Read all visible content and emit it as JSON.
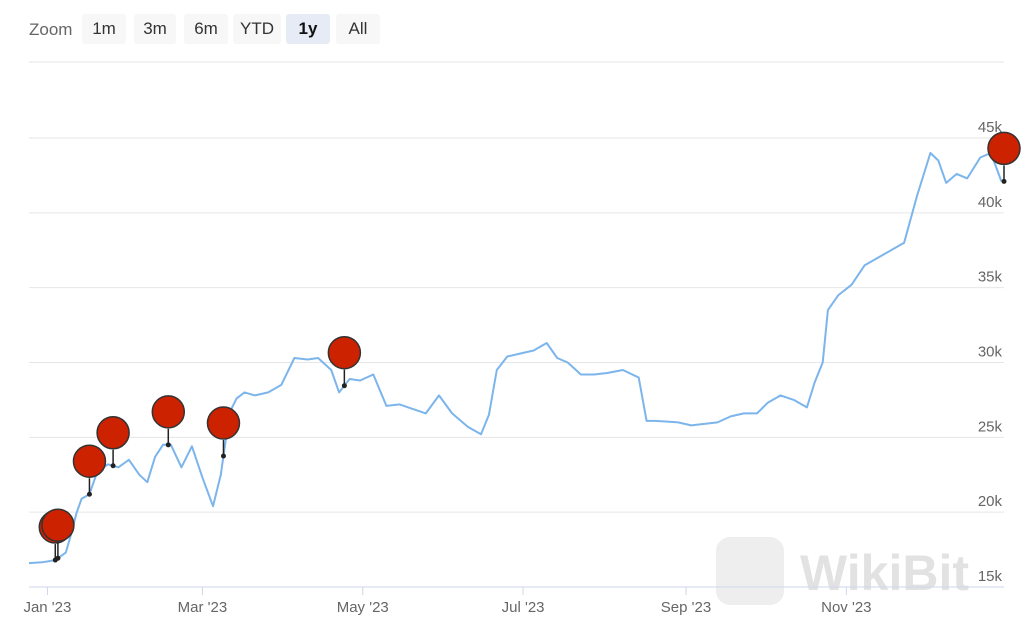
{
  "zoom": {
    "label": "Zoom",
    "buttons": [
      {
        "label": "1m",
        "active": false
      },
      {
        "label": "3m",
        "active": false
      },
      {
        "label": "6m",
        "active": false
      },
      {
        "label": "YTD",
        "active": false
      },
      {
        "label": "1y",
        "active": true
      },
      {
        "label": "All",
        "active": false
      }
    ]
  },
  "watermark": "WikiBit",
  "chart_data": {
    "type": "line",
    "title": "",
    "xlabel": "",
    "ylabel": "",
    "x_tick_labels": [
      "Jan '23",
      "Mar '23",
      "May '23",
      "Jul '23",
      "Sep '23",
      "Nov '23"
    ],
    "y_tick_labels": [
      "15k",
      "20k",
      "25k",
      "30k",
      "35k",
      "40k",
      "45k"
    ],
    "ylim": [
      15000,
      45000
    ],
    "grid": "horizontal",
    "line_color": "#7cb5ec",
    "marker_color": "#cc2200",
    "series": [
      {
        "x": [
          "2022-12-25",
          "2022-12-30",
          "2023-01-04",
          "2023-01-08",
          "2023-01-10",
          "2023-01-12",
          "2023-01-14",
          "2023-01-17",
          "2023-01-20",
          "2023-01-24",
          "2023-01-28",
          "2023-02-01",
          "2023-02-05",
          "2023-02-08",
          "2023-02-11",
          "2023-02-14",
          "2023-02-17",
          "2023-02-21",
          "2023-02-25",
          "2023-03-01",
          "2023-03-05",
          "2023-03-08",
          "2023-03-10",
          "2023-03-12",
          "2023-03-14",
          "2023-03-17",
          "2023-03-21",
          "2023-03-26",
          "2023-03-31",
          "2023-04-05",
          "2023-04-10",
          "2023-04-14",
          "2023-04-19",
          "2023-04-22",
          "2023-04-26",
          "2023-04-30",
          "2023-05-05",
          "2023-05-10",
          "2023-05-15",
          "2023-05-20",
          "2023-05-25",
          "2023-05-30",
          "2023-06-04",
          "2023-06-10",
          "2023-06-15",
          "2023-06-18",
          "2023-06-21",
          "2023-06-25",
          "2023-06-30",
          "2023-07-05",
          "2023-07-10",
          "2023-07-14",
          "2023-07-18",
          "2023-07-23",
          "2023-07-28",
          "2023-08-02",
          "2023-08-08",
          "2023-08-14",
          "2023-08-17",
          "2023-08-20",
          "2023-08-25",
          "2023-08-29",
          "2023-09-03",
          "2023-09-08",
          "2023-09-13",
          "2023-09-18",
          "2023-09-23",
          "2023-09-28",
          "2023-10-02",
          "2023-10-07",
          "2023-10-12",
          "2023-10-17",
          "2023-10-20",
          "2023-10-23",
          "2023-10-25",
          "2023-10-29",
          "2023-11-03",
          "2023-11-08",
          "2023-11-13",
          "2023-11-18",
          "2023-11-23",
          "2023-11-28",
          "2023-12-03",
          "2023-12-06",
          "2023-12-09",
          "2023-12-13",
          "2023-12-17",
          "2023-12-22",
          "2023-12-26",
          "2023-12-30"
        ],
        "y": [
          16600,
          16650,
          16800,
          17300,
          18500,
          19900,
          20900,
          21200,
          22700,
          23200,
          23000,
          23500,
          22500,
          22000,
          23700,
          24500,
          24500,
          23000,
          24400,
          22300,
          20400,
          22500,
          25000,
          26900,
          27600,
          28000,
          27800,
          28000,
          28500,
          30300,
          30200,
          30300,
          29500,
          28000,
          28900,
          28800,
          29200,
          27100,
          27200,
          26900,
          26600,
          27800,
          26600,
          25700,
          25200,
          26500,
          29500,
          30400,
          30600,
          30800,
          31300,
          30300,
          30000,
          29200,
          29200,
          29300,
          29500,
          29000,
          26100,
          26100,
          26050,
          26000,
          25800,
          25900,
          26000,
          26400,
          26600,
          26600,
          27300,
          27800,
          27500,
          27000,
          28700,
          30000,
          33500,
          34500,
          35200,
          36500,
          37000,
          37500,
          38000,
          41200,
          44000,
          43500,
          42000,
          42600,
          42300,
          43700,
          44000,
          42100
        ]
      }
    ],
    "markers": [
      "2023-01-04",
      "2023-01-05",
      "2023-01-17",
      "2023-01-26",
      "2023-02-16",
      "2023-03-09",
      "2023-04-24",
      "2023-12-31"
    ]
  }
}
